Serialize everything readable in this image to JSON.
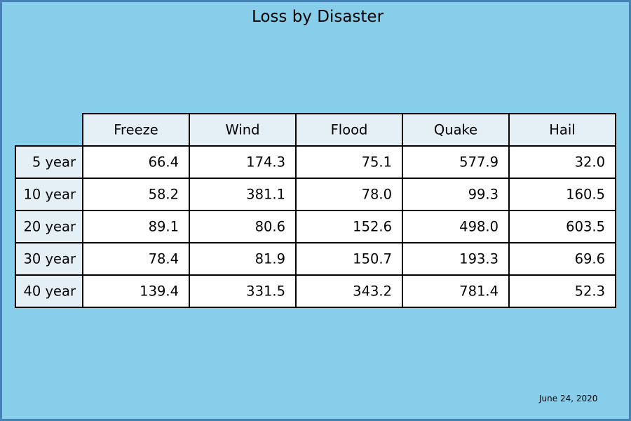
{
  "figure": {
    "background": "#87CEEB",
    "border_color": "#4682B4",
    "footer_date": "June 24, 2020"
  },
  "chart_data": {
    "type": "table",
    "title": "Loss by Disaster",
    "columns": [
      "Freeze",
      "Wind",
      "Flood",
      "Quake",
      "Hail"
    ],
    "rows": [
      "5 year",
      "10 year",
      "20 year",
      "30 year",
      "40 year"
    ],
    "cells": [
      [
        "66.4",
        "174.3",
        "75.1",
        "577.9",
        "32.0"
      ],
      [
        "58.2",
        "381.1",
        "78.0",
        "99.3",
        "160.5"
      ],
      [
        "89.1",
        "80.6",
        "152.6",
        "498.0",
        "603.5"
      ],
      [
        "78.4",
        "81.9",
        "150.7",
        "193.3",
        "69.6"
      ],
      [
        "139.4",
        "331.5",
        "343.2",
        "781.4",
        "52.3"
      ]
    ],
    "header_color": "#E4F0F6",
    "cell_color": "#FFFFFF",
    "grid_color": "#000000"
  }
}
